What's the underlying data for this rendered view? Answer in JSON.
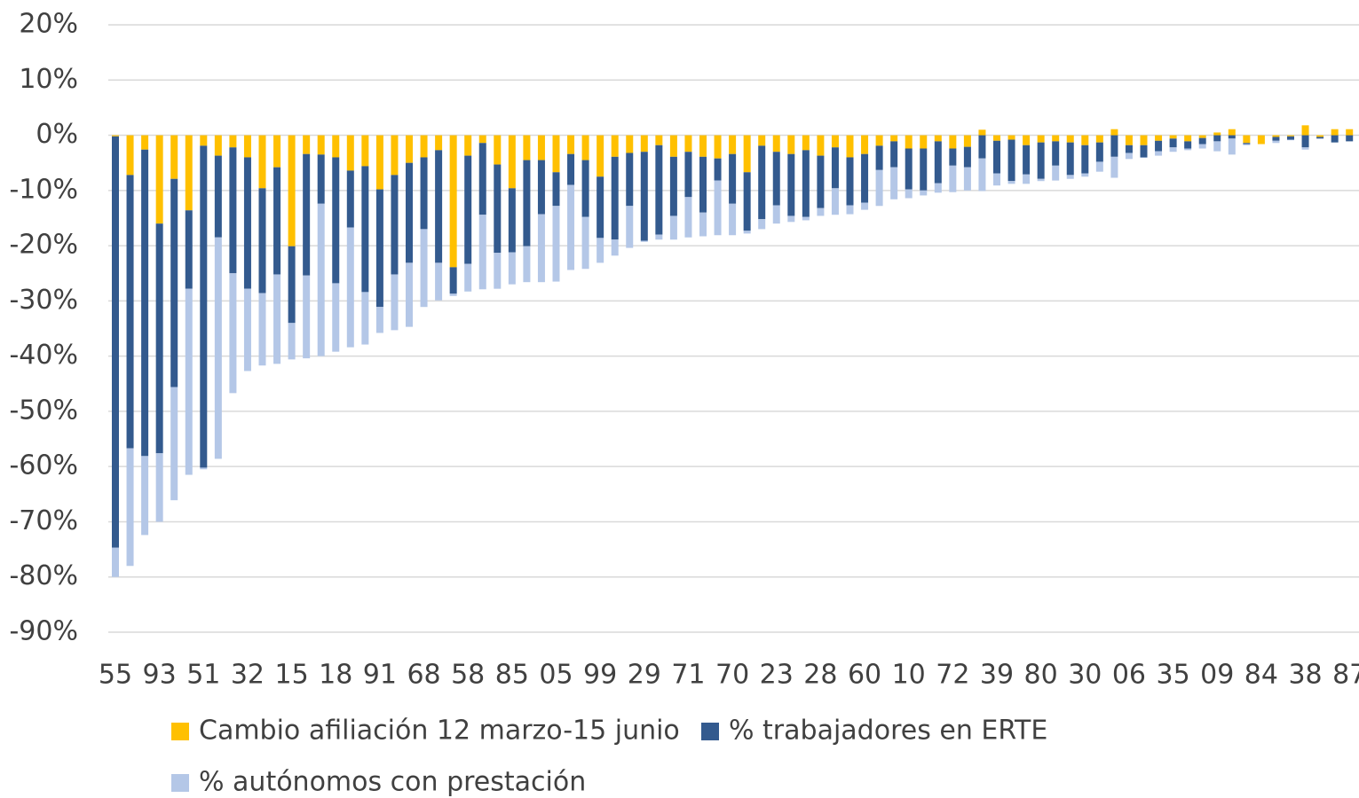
{
  "chart_data": {
    "type": "stacked_bar",
    "categories": [
      "55",
      null,
      null,
      "93",
      null,
      null,
      "51",
      null,
      null,
      "32",
      null,
      null,
      "15",
      null,
      null,
      "18",
      null,
      null,
      "91",
      null,
      null,
      "68",
      null,
      null,
      "58",
      null,
      null,
      "85",
      null,
      null,
      "05",
      null,
      null,
      "99",
      null,
      null,
      "29",
      null,
      null,
      "71",
      null,
      null,
      "70",
      null,
      null,
      "23",
      null,
      null,
      "28",
      null,
      null,
      "60",
      null,
      null,
      "10",
      null,
      null,
      "72",
      null,
      null,
      "39",
      null,
      null,
      "80",
      null,
      null,
      "30",
      null,
      null,
      "06",
      null,
      null,
      "35",
      null,
      null,
      "09",
      null,
      null,
      "84",
      null,
      null,
      "38",
      null,
      null,
      "87"
    ],
    "series": [
      {
        "name": "Cambio afiliación 12 marzo-15 junio",
        "color": "#FFC000",
        "values": [
          -0.2,
          -7.2,
          -2.6,
          -16,
          -7.9,
          -13.6,
          -1.9,
          -3.7,
          -2.2,
          -4,
          -9.6,
          -5.8,
          -20.1,
          -3.4,
          -3.5,
          -4,
          -6.4,
          -5.6,
          -9.8,
          -7.2,
          -5,
          -4,
          -2.7,
          -23.9,
          -3.7,
          -1.4,
          -5.3,
          -9.6,
          -4.5,
          -4.5,
          -6.7,
          -3.4,
          -4.5,
          -7.5,
          -3.9,
          -3.2,
          -3,
          -1.8,
          -3.9,
          -3,
          -3.9,
          -4.2,
          -3.4,
          -6.7,
          -1.9,
          -3,
          -3.4,
          -2.7,
          -3.7,
          -2.2,
          -4,
          -3.4,
          -1.9,
          -1.1,
          -2.4,
          -2.4,
          -1.1,
          -2.4,
          -2.1,
          1,
          -1,
          -0.8,
          -1.8,
          -1.3,
          -1.1,
          -1.3,
          -1.8,
          -1.3,
          1.1,
          -1.8,
          -1.8,
          -1,
          -0.6,
          -1.1,
          -0.5,
          0.5,
          1.1,
          -1.4,
          -1.6,
          -0.3,
          -0.2,
          1.8,
          -0.3,
          1.1,
          1.1
        ]
      },
      {
        "name": "% trabajadores en ERTE",
        "color": "#335A8E",
        "values": [
          -74.5,
          -49.5,
          -55.5,
          -41.6,
          -37.7,
          -14.2,
          -58.3,
          -14.8,
          -22.8,
          -23.8,
          -19,
          -19.4,
          -13.9,
          -22,
          -8.9,
          -22.8,
          -10.3,
          -22.8,
          -21.3,
          -18,
          -18.1,
          -13,
          -20.4,
          -4.8,
          -19.6,
          -13,
          -16,
          -11.6,
          -15.6,
          -9.8,
          -6.1,
          -5.6,
          -10.3,
          -11.1,
          -15,
          -9.6,
          -16.1,
          -16.2,
          -10.7,
          -8.2,
          -10.1,
          -4,
          -9,
          -10.6,
          -13.3,
          -9.7,
          -11.2,
          -12.1,
          -9.5,
          -7.4,
          -8.7,
          -8.8,
          -4.4,
          -4.7,
          -7.4,
          -7.6,
          -7.6,
          -3.1,
          -3.7,
          -4.2,
          -5.9,
          -7.5,
          -5.3,
          -6.6,
          -4.4,
          -5.9,
          -5.1,
          -3.5,
          -3.9,
          -1.4,
          -2.2,
          -1.9,
          -1.6,
          -1.3,
          -1.1,
          -1.1,
          -0.6,
          -0.2,
          0,
          -0.7,
          -0.6,
          -2.2,
          -0.3,
          -1.3,
          -1.1
        ]
      },
      {
        "name": "% autónomos con prestación",
        "color": "#B4C7E7",
        "values": [
          -5.3,
          -21.3,
          -14.3,
          -12.4,
          -20.5,
          -33.7,
          -0.3,
          -40.1,
          -21.7,
          -14.9,
          -13.1,
          -16.2,
          -6.6,
          -15,
          -27.6,
          -12.4,
          -21.7,
          -9.5,
          -4.7,
          -10.1,
          -11.6,
          -14.1,
          -6.8,
          -0.4,
          -5,
          -13.5,
          -6.5,
          -5.8,
          -6.5,
          -12.3,
          -13.7,
          -15.4,
          -9.4,
          -4.5,
          -2.9,
          -7.6,
          -0.2,
          -0.9,
          -4.3,
          -7.3,
          -4.3,
          -9.9,
          -5.7,
          -0.5,
          -1.8,
          -3.3,
          -1.1,
          -0.6,
          -1.4,
          -4.8,
          -1.6,
          -1.3,
          -6.5,
          -5.8,
          -1.6,
          -0.9,
          -1.7,
          -4.8,
          -4.2,
          -5.9,
          -2.2,
          -0.5,
          -1.7,
          -0.4,
          -2.7,
          -0.7,
          -0.6,
          -1.8,
          -3.8,
          -1.1,
          -0.1,
          -0.8,
          -0.8,
          -0.3,
          -0.8,
          -1.8,
          -2.9,
          -0.2,
          0,
          -0.4,
          -0.1,
          -0.4,
          0,
          0,
          0
        ]
      }
    ],
    "ylim": [
      -90,
      20
    ],
    "yticks": [
      {
        "value": 20,
        "label": "20%"
      },
      {
        "value": 10,
        "label": "10%"
      },
      {
        "value": 0,
        "label": "0%"
      },
      {
        "value": -10,
        "label": "-10%"
      },
      {
        "value": -20,
        "label": "-20%"
      },
      {
        "value": -30,
        "label": "-30%"
      },
      {
        "value": -40,
        "label": "-40%"
      },
      {
        "value": -50,
        "label": "-50%"
      },
      {
        "value": -60,
        "label": "-60%"
      },
      {
        "value": -70,
        "label": "-70%"
      },
      {
        "value": -80,
        "label": "-80%"
      },
      {
        "value": -90,
        "label": "-90%"
      }
    ],
    "grid": true,
    "legend": "bottom"
  }
}
